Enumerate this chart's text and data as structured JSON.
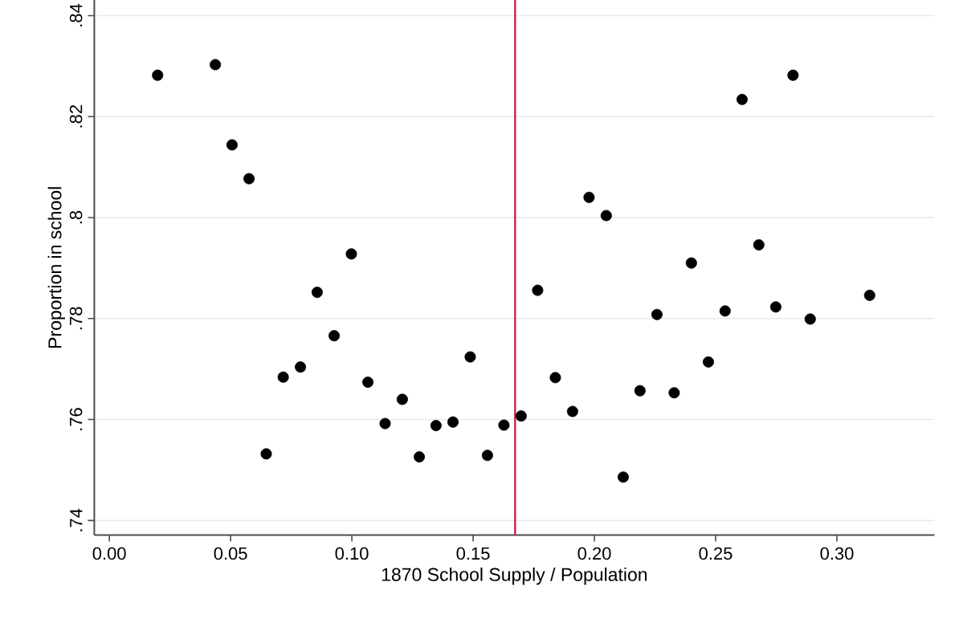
{
  "chart_data": {
    "type": "scatter",
    "xlabel": "1870 School Supply / Population",
    "ylabel": "Proportion in school",
    "x": [
      0.0199,
      0.0437,
      0.0506,
      0.0576,
      0.0647,
      0.0717,
      0.0788,
      0.0857,
      0.0927,
      0.0998,
      0.1066,
      0.1137,
      0.1208,
      0.1278,
      0.1347,
      0.1417,
      0.1488,
      0.1559,
      0.1627,
      0.1698,
      0.1766,
      0.1839,
      0.191,
      0.1978,
      0.2049,
      0.2119,
      0.2188,
      0.2258,
      0.2329,
      0.24,
      0.247,
      0.2539,
      0.2609,
      0.2678,
      0.2748,
      0.2819,
      0.289,
      0.3135
    ],
    "values": [
      0.8282,
      0.8303,
      0.8144,
      0.8077,
      0.7532,
      0.7684,
      0.7704,
      0.7852,
      0.7766,
      0.7928,
      0.7674,
      0.7592,
      0.764,
      0.7526,
      0.7588,
      0.7595,
      0.7724,
      0.7529,
      0.7589,
      0.7607,
      0.7856,
      0.7683,
      0.7616,
      0.804,
      0.8004,
      0.7486,
      0.7657,
      0.7808,
      0.7653,
      0.791,
      0.7714,
      0.7815,
      0.8234,
      0.7946,
      0.7823,
      0.8282,
      0.7799,
      0.7846
    ],
    "color": "#000000",
    "marker": "circle",
    "grid": "y",
    "xlim": [
      -0.0062,
      0.3402
    ],
    "ylim": [
      0.7371,
      0.8431
    ],
    "xticks": [
      {
        "value": 0,
        "label": "0.00"
      },
      0.05,
      {
        "value": 0.1,
        "label": "0.10"
      },
      0.15,
      {
        "value": 0.2,
        "label": "0.20"
      },
      0.25,
      {
        "value": 0.3,
        "label": "0.30"
      }
    ],
    "yticks": [
      {
        "value": 0.74,
        "label": ".74"
      },
      {
        "value": 0.76,
        "label": ".76"
      },
      {
        "value": 0.78,
        "label": ".78"
      },
      {
        "value": 0.8,
        "label": ".8"
      },
      {
        "value": 0.82,
        "label": ".82"
      },
      {
        "value": 0.84,
        "label": ".84"
      }
    ],
    "ref_lines": [
      {
        "axis": "x",
        "value": 0.1673,
        "color": "#c8254a"
      }
    ]
  }
}
